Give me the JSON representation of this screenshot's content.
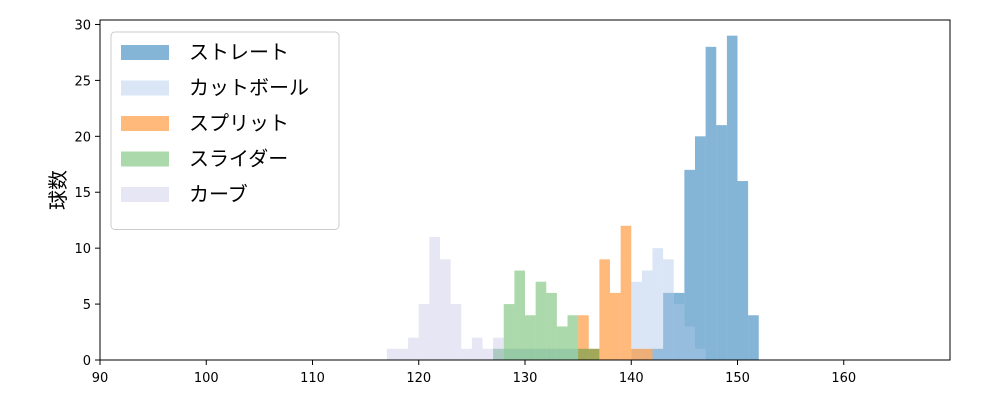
{
  "chart_data": {
    "type": "histogram",
    "title": "",
    "xlabel": "",
    "ylabel": "球数",
    "xlim": [
      90,
      170
    ],
    "ylim": [
      0,
      30.4
    ],
    "x_ticks": [
      90,
      100,
      110,
      120,
      130,
      140,
      150,
      160
    ],
    "y_ticks": [
      0,
      5,
      10,
      15,
      20,
      25,
      30
    ],
    "bin_width": 1,
    "grid": false,
    "legend_position": "top-left",
    "series": [
      {
        "name": "ストレート",
        "color": "#1f77b4",
        "opacity": 0.55,
        "bins": [
          [
            142,
            1
          ],
          [
            143,
            6
          ],
          [
            144,
            6
          ],
          [
            145,
            17
          ],
          [
            146,
            20
          ],
          [
            147,
            28
          ],
          [
            148,
            21
          ],
          [
            149,
            29
          ],
          [
            150,
            16
          ],
          [
            151,
            4
          ]
        ]
      },
      {
        "name": "カットボール",
        "color": "#aec7e8",
        "opacity": 0.45,
        "bins": [
          [
            127,
            1
          ],
          [
            128,
            1
          ],
          [
            129,
            1
          ],
          [
            130,
            1
          ],
          [
            131,
            1
          ],
          [
            132,
            1
          ],
          [
            133,
            1
          ],
          [
            134,
            1
          ],
          [
            135,
            1
          ],
          [
            136,
            1
          ],
          [
            140,
            7
          ],
          [
            141,
            8
          ],
          [
            142,
            10
          ],
          [
            143,
            9
          ],
          [
            144,
            5
          ],
          [
            145,
            3
          ],
          [
            146,
            1
          ]
        ]
      },
      {
        "name": "スプリット",
        "color": "#ff7f0e",
        "opacity": 0.55,
        "bins": [
          [
            135,
            4
          ],
          [
            136,
            1
          ],
          [
            137,
            9
          ],
          [
            138,
            6
          ],
          [
            139,
            12
          ],
          [
            140,
            1
          ],
          [
            141,
            1
          ]
        ]
      },
      {
        "name": "スライダー",
        "color": "#2ca02c",
        "opacity": 0.4,
        "bins": [
          [
            127,
            1
          ],
          [
            128,
            5
          ],
          [
            129,
            8
          ],
          [
            130,
            4
          ],
          [
            131,
            7
          ],
          [
            132,
            6
          ],
          [
            133,
            3
          ],
          [
            134,
            4
          ],
          [
            135,
            1
          ],
          [
            136,
            1
          ]
        ]
      },
      {
        "name": "カーブ",
        "color": "#c8c8e6",
        "opacity": 0.45,
        "bins": [
          [
            117,
            1
          ],
          [
            118,
            1
          ],
          [
            119,
            2
          ],
          [
            120,
            5
          ],
          [
            121,
            11
          ],
          [
            122,
            9
          ],
          [
            123,
            5
          ],
          [
            124,
            1
          ],
          [
            125,
            2
          ],
          [
            126,
            1
          ],
          [
            127,
            2
          ]
        ]
      }
    ]
  }
}
